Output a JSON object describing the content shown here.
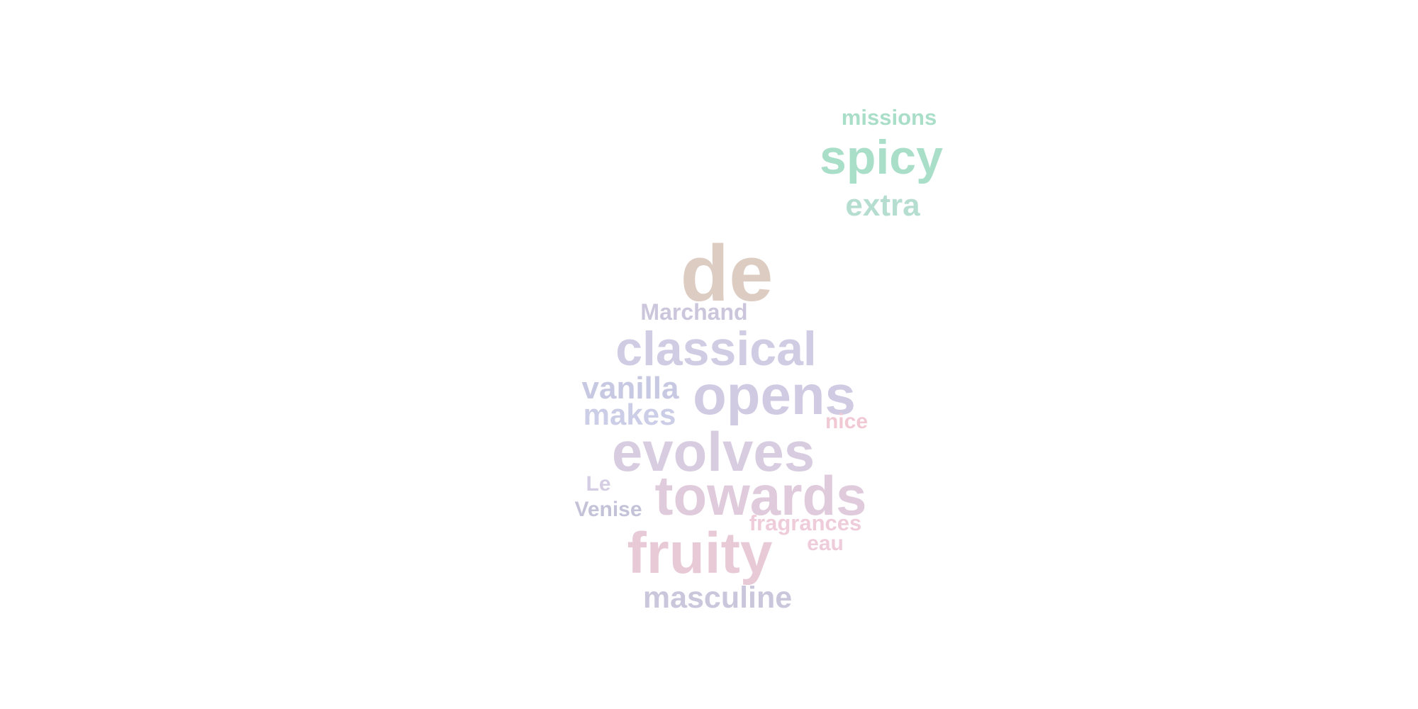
{
  "words": [
    {
      "id": "missions",
      "text": "missions",
      "color": "#a9dec9"
    },
    {
      "id": "spicy",
      "text": "spicy",
      "color": "#a9dec9"
    },
    {
      "id": "extra",
      "text": "extra",
      "color": "#b5ded1"
    },
    {
      "id": "de",
      "text": "de",
      "color": "#dcccc2"
    },
    {
      "id": "marchand",
      "text": "Marchand",
      "color": "#cbc6dc"
    },
    {
      "id": "classical",
      "text": "classical",
      "color": "#cfcce4"
    },
    {
      "id": "vanilla",
      "text": "vanilla",
      "color": "#c7c8e2"
    },
    {
      "id": "opens",
      "text": "opens",
      "color": "#d0cbe3"
    },
    {
      "id": "makes",
      "text": "makes",
      "color": "#cccde6"
    },
    {
      "id": "nice",
      "text": "nice",
      "color": "#f0c9d4"
    },
    {
      "id": "evolves",
      "text": "evolves",
      "color": "#d8cde0"
    },
    {
      "id": "le",
      "text": "Le",
      "color": "#d4cde4"
    },
    {
      "id": "towards",
      "text": "towards",
      "color": "#dfcbdc"
    },
    {
      "id": "venise",
      "text": "Venise",
      "color": "#c4c2d8"
    },
    {
      "id": "fragrances",
      "text": "fragrances",
      "color": "#efccda"
    },
    {
      "id": "eau",
      "text": "eau",
      "color": "#efccda"
    },
    {
      "id": "fruity",
      "text": "fruity",
      "color": "#e8cad6"
    },
    {
      "id": "masculine",
      "text": "masculine",
      "color": "#cac7dc"
    }
  ]
}
